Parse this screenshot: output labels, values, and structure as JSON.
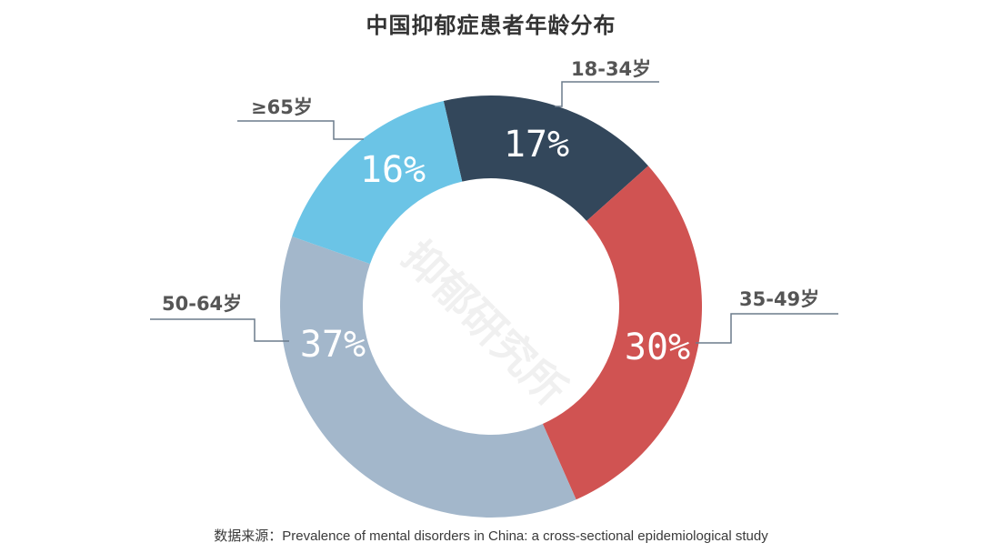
{
  "title": "中国抑郁症患者年龄分布",
  "watermark": "抑郁研究所",
  "source": "数据来源：Prevalence of mental disorders in China: a cross-sectional  epidemiological study",
  "chart_data": {
    "type": "pie",
    "subtype": "donut",
    "title": "中国抑郁症患者年龄分布",
    "categories": [
      "18-34岁",
      "35-49岁",
      "50-64岁",
      "≥65岁"
    ],
    "values": [
      17,
      30,
      37,
      16
    ],
    "unit": "%",
    "colors": [
      "#33475b",
      "#d05352",
      "#a3b7cb",
      "#6bc4e6"
    ],
    "data_labels": [
      "17%",
      "30%",
      "37%",
      "16%"
    ],
    "start_angle_deg": -13,
    "direction": "clockwise",
    "legend": "callout labels with leader lines"
  },
  "labels": {
    "a": "18-34岁",
    "b": "35-49岁",
    "c": "50-64岁",
    "d": "≥65岁"
  },
  "pcts": {
    "a": "17%",
    "b": "30%",
    "c": "37%",
    "d": "16%"
  },
  "colors": {
    "leader_line": "#6b7b8c",
    "label_text": "#555555",
    "title_text": "#333333"
  }
}
